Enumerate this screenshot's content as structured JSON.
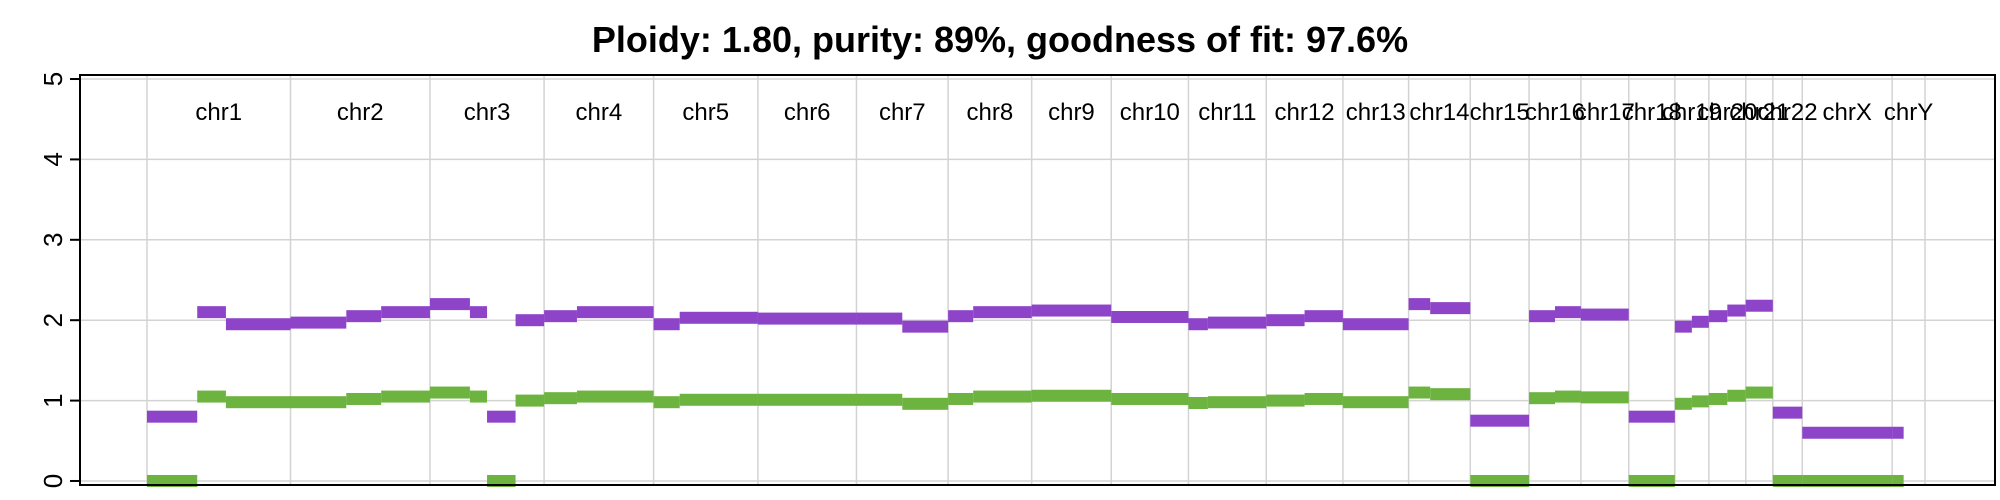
{
  "chart_data": {
    "type": "line",
    "title": "Ploidy: 1.80, purity: 89%, goodness of fit: 97.6%",
    "xlabel": "",
    "ylabel": "",
    "ylim": [
      -0.05,
      5.05
    ],
    "yticks": [
      0,
      1,
      2,
      3,
      4,
      5
    ],
    "grid": true,
    "legend": "none",
    "chromosomes": [
      "chr1",
      "chr2",
      "chr3",
      "chr4",
      "chr5",
      "chr6",
      "chr7",
      "chr8",
      "chr9",
      "chr10",
      "chr11",
      "chr12",
      "chr13",
      "chr14",
      "chr15",
      "chr16",
      "chr17",
      "chr18",
      "chr19",
      "chr20",
      "chr21",
      "chr22",
      "chrX",
      "chrY"
    ],
    "chrom_lengths_mb": [
      249,
      242,
      198,
      190,
      181,
      171,
      159,
      145,
      138,
      134,
      135,
      133,
      114,
      107,
      102,
      90,
      83,
      80,
      59,
      64,
      47,
      51,
      156,
      57
    ],
    "series": [
      {
        "color": "#8E44C9",
        "segments": [
          {
            "chr": "chr1",
            "start": 0,
            "end": 0.35,
            "value": 0.8
          },
          {
            "chr": "chr1",
            "start": 0.35,
            "end": 0.55,
            "value": 2.1
          },
          {
            "chr": "chr1",
            "start": 0.55,
            "end": 1.0,
            "value": 1.95
          },
          {
            "chr": "chr2",
            "start": 0,
            "end": 0.4,
            "value": 1.97
          },
          {
            "chr": "chr2",
            "start": 0.4,
            "end": 0.65,
            "value": 2.05
          },
          {
            "chr": "chr2",
            "start": 0.65,
            "end": 1.0,
            "value": 2.1
          },
          {
            "chr": "chr3",
            "start": 0,
            "end": 0.35,
            "value": 2.2
          },
          {
            "chr": "chr3",
            "start": 0.35,
            "end": 0.5,
            "value": 2.1
          },
          {
            "chr": "chr3",
            "start": 0.5,
            "end": 0.75,
            "value": 0.8
          },
          {
            "chr": "chr3",
            "start": 0.75,
            "end": 1.0,
            "value": 2.0
          },
          {
            "chr": "chr4",
            "start": 0,
            "end": 0.3,
            "value": 2.05
          },
          {
            "chr": "chr4",
            "start": 0.3,
            "end": 1.0,
            "value": 2.1
          },
          {
            "chr": "chr5",
            "start": 0,
            "end": 0.25,
            "value": 1.95
          },
          {
            "chr": "chr5",
            "start": 0.25,
            "end": 1.0,
            "value": 2.03
          },
          {
            "chr": "chr6",
            "start": 0,
            "end": 1.0,
            "value": 2.02
          },
          {
            "chr": "chr7",
            "start": 0,
            "end": 0.5,
            "value": 2.02
          },
          {
            "chr": "chr7",
            "start": 0.5,
            "end": 1.0,
            "value": 1.92
          },
          {
            "chr": "chr8",
            "start": 0,
            "end": 0.3,
            "value": 2.05
          },
          {
            "chr": "chr8",
            "start": 0.3,
            "end": 1.0,
            "value": 2.1
          },
          {
            "chr": "chr9",
            "start": 0,
            "end": 1.0,
            "value": 2.12
          },
          {
            "chr": "chr10",
            "start": 0,
            "end": 1.0,
            "value": 2.04
          },
          {
            "chr": "chr11",
            "start": 0,
            "end": 0.25,
            "value": 1.95
          },
          {
            "chr": "chr11",
            "start": 0.25,
            "end": 1.0,
            "value": 1.97
          },
          {
            "chr": "chr12",
            "start": 0,
            "end": 0.5,
            "value": 2.0
          },
          {
            "chr": "chr12",
            "start": 0.5,
            "end": 1.0,
            "value": 2.05
          },
          {
            "chr": "chr13",
            "start": 0,
            "end": 1.0,
            "value": 1.95
          },
          {
            "chr": "chr14",
            "start": 0,
            "end": 0.35,
            "value": 2.2
          },
          {
            "chr": "chr14",
            "start": 0.35,
            "end": 1.0,
            "value": 2.15
          },
          {
            "chr": "chr15",
            "start": 0,
            "end": 1.0,
            "value": 0.75
          },
          {
            "chr": "chr16",
            "start": 0,
            "end": 0.5,
            "value": 2.05
          },
          {
            "chr": "chr16",
            "start": 0.5,
            "end": 1.0,
            "value": 2.1
          },
          {
            "chr": "chr17",
            "start": 0,
            "end": 1.0,
            "value": 2.07
          },
          {
            "chr": "chr18",
            "start": 0,
            "end": 1.0,
            "value": 0.8
          },
          {
            "chr": "chr19",
            "start": 0,
            "end": 0.5,
            "value": 1.92
          },
          {
            "chr": "chr19",
            "start": 0.5,
            "end": 1.0,
            "value": 1.98
          },
          {
            "chr": "chr20",
            "start": 0,
            "end": 0.5,
            "value": 2.05
          },
          {
            "chr": "chr20",
            "start": 0.5,
            "end": 1.0,
            "value": 2.12
          },
          {
            "chr": "chr21",
            "start": 0,
            "end": 1.0,
            "value": 2.18
          },
          {
            "chr": "chr22",
            "start": 0,
            "end": 1.0,
            "value": 0.85
          },
          {
            "chr": "chrX",
            "start": 0,
            "end": 1.0,
            "value": 0.6
          },
          {
            "chr": "chrY",
            "start": 0,
            "end": 0.35,
            "value": 0.6
          }
        ]
      },
      {
        "color": "#6DB33F",
        "segments": [
          {
            "chr": "chr1",
            "start": 0,
            "end": 0.35,
            "value": 0.0
          },
          {
            "chr": "chr1",
            "start": 0.35,
            "end": 0.55,
            "value": 1.05
          },
          {
            "chr": "chr1",
            "start": 0.55,
            "end": 1.0,
            "value": 0.98
          },
          {
            "chr": "chr2",
            "start": 0,
            "end": 0.4,
            "value": 0.98
          },
          {
            "chr": "chr2",
            "start": 0.4,
            "end": 0.65,
            "value": 1.02
          },
          {
            "chr": "chr2",
            "start": 0.65,
            "end": 1.0,
            "value": 1.05
          },
          {
            "chr": "chr3",
            "start": 0,
            "end": 0.35,
            "value": 1.1
          },
          {
            "chr": "chr3",
            "start": 0.35,
            "end": 0.5,
            "value": 1.05
          },
          {
            "chr": "chr3",
            "start": 0.5,
            "end": 0.75,
            "value": 0.0
          },
          {
            "chr": "chr3",
            "start": 0.75,
            "end": 1.0,
            "value": 1.0
          },
          {
            "chr": "chr4",
            "start": 0,
            "end": 0.3,
            "value": 1.03
          },
          {
            "chr": "chr4",
            "start": 0.3,
            "end": 1.0,
            "value": 1.05
          },
          {
            "chr": "chr5",
            "start": 0,
            "end": 0.25,
            "value": 0.98
          },
          {
            "chr": "chr5",
            "start": 0.25,
            "end": 1.0,
            "value": 1.01
          },
          {
            "chr": "chr6",
            "start": 0,
            "end": 1.0,
            "value": 1.01
          },
          {
            "chr": "chr7",
            "start": 0,
            "end": 0.5,
            "value": 1.01
          },
          {
            "chr": "chr7",
            "start": 0.5,
            "end": 1.0,
            "value": 0.96
          },
          {
            "chr": "chr8",
            "start": 0,
            "end": 0.3,
            "value": 1.02
          },
          {
            "chr": "chr8",
            "start": 0.3,
            "end": 1.0,
            "value": 1.05
          },
          {
            "chr": "chr9",
            "start": 0,
            "end": 1.0,
            "value": 1.06
          },
          {
            "chr": "chr10",
            "start": 0,
            "end": 1.0,
            "value": 1.02
          },
          {
            "chr": "chr11",
            "start": 0,
            "end": 0.25,
            "value": 0.97
          },
          {
            "chr": "chr11",
            "start": 0.25,
            "end": 1.0,
            "value": 0.98
          },
          {
            "chr": "chr12",
            "start": 0,
            "end": 0.5,
            "value": 1.0
          },
          {
            "chr": "chr12",
            "start": 0.5,
            "end": 1.0,
            "value": 1.02
          },
          {
            "chr": "chr13",
            "start": 0,
            "end": 1.0,
            "value": 0.98
          },
          {
            "chr": "chr14",
            "start": 0,
            "end": 0.35,
            "value": 1.1
          },
          {
            "chr": "chr14",
            "start": 0.35,
            "end": 1.0,
            "value": 1.08
          },
          {
            "chr": "chr15",
            "start": 0,
            "end": 1.0,
            "value": 0.0
          },
          {
            "chr": "chr16",
            "start": 0,
            "end": 0.5,
            "value": 1.03
          },
          {
            "chr": "chr16",
            "start": 0.5,
            "end": 1.0,
            "value": 1.05
          },
          {
            "chr": "chr17",
            "start": 0,
            "end": 1.0,
            "value": 1.04
          },
          {
            "chr": "chr18",
            "start": 0,
            "end": 1.0,
            "value": 0.0
          },
          {
            "chr": "chr19",
            "start": 0,
            "end": 0.5,
            "value": 0.96
          },
          {
            "chr": "chr19",
            "start": 0.5,
            "end": 1.0,
            "value": 0.99
          },
          {
            "chr": "chr20",
            "start": 0,
            "end": 0.5,
            "value": 1.02
          },
          {
            "chr": "chr20",
            "start": 0.5,
            "end": 1.0,
            "value": 1.06
          },
          {
            "chr": "chr21",
            "start": 0,
            "end": 1.0,
            "value": 1.1
          },
          {
            "chr": "chr22",
            "start": 0,
            "end": 1.0,
            "value": 0.0
          },
          {
            "chr": "chrX",
            "start": 0,
            "end": 1.0,
            "value": 0.0
          },
          {
            "chr": "chrY",
            "start": 0,
            "end": 0.35,
            "value": 0.0
          }
        ]
      }
    ]
  }
}
